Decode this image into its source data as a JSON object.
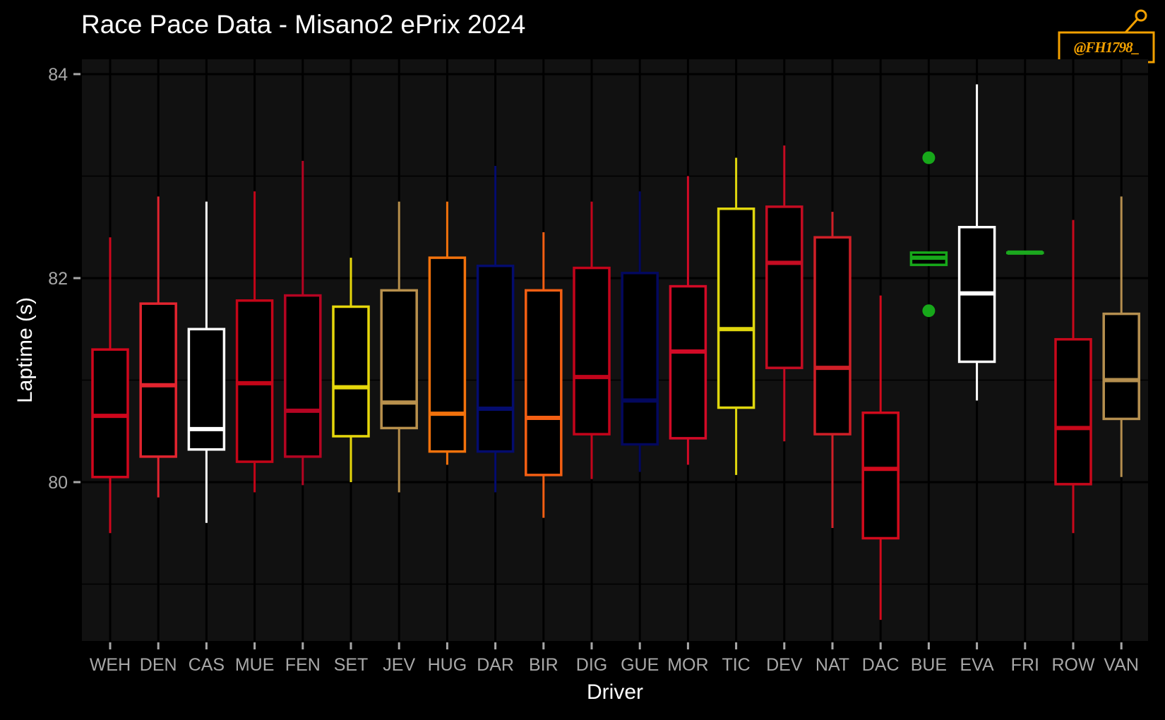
{
  "header": {
    "title": "Race Pace Data - Misano2 ePrix 2024"
  },
  "logo": {
    "text": "@FH1798_",
    "color": "#f2a000"
  },
  "chart_data": {
    "type": "boxplot",
    "title": "Race Pace Data - Misano2 ePrix 2024",
    "xlabel": "Driver",
    "ylabel": "Laptime (s)",
    "ylim": [
      78.5,
      84.2
    ],
    "yticks": [
      80,
      82,
      84
    ],
    "grid": true,
    "background": "#111111",
    "drivers": [
      {
        "name": "WEH",
        "color": "#d0061c",
        "min": 79.5,
        "q1": 80.05,
        "median": 80.65,
        "q3": 81.3,
        "max": 82.4,
        "outliers": []
      },
      {
        "name": "DEN",
        "color": "#e2242f",
        "min": 79.85,
        "q1": 80.25,
        "median": 80.95,
        "q3": 81.75,
        "max": 82.8,
        "outliers": []
      },
      {
        "name": "CAS",
        "color": "#ffffff",
        "min": 79.6,
        "q1": 80.32,
        "median": 80.52,
        "q3": 81.5,
        "max": 82.75,
        "outliers": []
      },
      {
        "name": "MUE",
        "color": "#c40518",
        "min": 79.9,
        "q1": 80.2,
        "median": 80.97,
        "q3": 81.78,
        "max": 82.85,
        "outliers": []
      },
      {
        "name": "FEN",
        "color": "#b50422",
        "min": 79.97,
        "q1": 80.25,
        "median": 80.7,
        "q3": 81.83,
        "max": 83.15,
        "outliers": []
      },
      {
        "name": "SET",
        "color": "#e6d70b",
        "min": 80.0,
        "q1": 80.45,
        "median": 80.93,
        "q3": 81.72,
        "max": 82.2,
        "outliers": []
      },
      {
        "name": "JEV",
        "color": "#b8904c",
        "min": 79.9,
        "q1": 80.53,
        "median": 80.78,
        "q3": 81.88,
        "max": 82.75,
        "outliers": []
      },
      {
        "name": "HUG",
        "color": "#f2720c",
        "min": 80.17,
        "q1": 80.3,
        "median": 80.67,
        "q3": 82.2,
        "max": 82.75,
        "outliers": []
      },
      {
        "name": "DAR",
        "color": "#040c6e",
        "min": 79.9,
        "q1": 80.3,
        "median": 80.72,
        "q3": 82.12,
        "max": 83.1,
        "outliers": []
      },
      {
        "name": "BIR",
        "color": "#f45f13",
        "min": 79.65,
        "q1": 80.07,
        "median": 80.63,
        "q3": 81.88,
        "max": 82.45,
        "outliers": []
      },
      {
        "name": "DIG",
        "color": "#c3041b",
        "min": 80.03,
        "q1": 80.47,
        "median": 81.03,
        "q3": 82.1,
        "max": 82.75,
        "outliers": []
      },
      {
        "name": "GUE",
        "color": "#03085e",
        "min": 80.1,
        "q1": 80.37,
        "median": 80.8,
        "q3": 82.05,
        "max": 82.85,
        "outliers": []
      },
      {
        "name": "MOR",
        "color": "#d20a26",
        "min": 80.17,
        "q1": 80.43,
        "median": 81.28,
        "q3": 81.92,
        "max": 83.0,
        "outliers": []
      },
      {
        "name": "TIC",
        "color": "#e0d70e",
        "min": 80.07,
        "q1": 80.73,
        "median": 81.5,
        "q3": 82.68,
        "max": 83.18,
        "outliers": []
      },
      {
        "name": "DEV",
        "color": "#c50c22",
        "min": 80.4,
        "q1": 81.12,
        "median": 82.15,
        "q3": 82.7,
        "max": 83.3,
        "outliers": []
      },
      {
        "name": "NAT",
        "color": "#cf1f27",
        "min": 79.55,
        "q1": 80.47,
        "median": 81.12,
        "q3": 82.4,
        "max": 82.65,
        "outliers": []
      },
      {
        "name": "DAC",
        "color": "#d20a1c",
        "min": 78.65,
        "q1": 79.45,
        "median": 80.13,
        "q3": 80.68,
        "max": 81.83,
        "outliers": []
      },
      {
        "name": "BUE",
        "color": "#17a81a",
        "min": 82.13,
        "q1": 82.13,
        "median": 82.2,
        "q3": 82.25,
        "max": 82.25,
        "outliers": [
          83.18,
          81.68
        ]
      },
      {
        "name": "EVA",
        "color": "#ffffff",
        "min": 80.8,
        "q1": 81.18,
        "median": 81.85,
        "q3": 82.5,
        "max": 83.9,
        "outliers": []
      },
      {
        "name": "FRI",
        "color": "#1ba81e",
        "min": 82.25,
        "q1": 82.25,
        "median": 82.25,
        "q3": 82.25,
        "max": 82.25,
        "outliers": []
      },
      {
        "name": "ROW",
        "color": "#c8081b",
        "min": 79.5,
        "q1": 79.98,
        "median": 80.53,
        "q3": 81.4,
        "max": 82.57,
        "outliers": []
      },
      {
        "name": "VAN",
        "color": "#b58f4f",
        "min": 80.05,
        "q1": 80.62,
        "median": 81.0,
        "q3": 81.65,
        "max": 82.8,
        "outliers": []
      }
    ]
  }
}
